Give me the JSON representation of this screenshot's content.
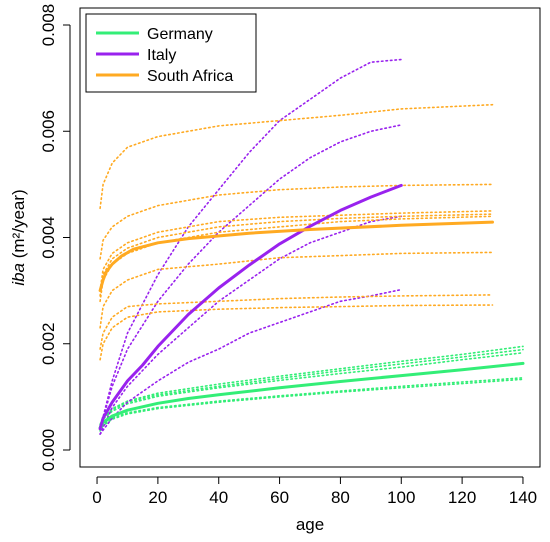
{
  "chart_data": {
    "type": "line",
    "xlabel": "age",
    "ylabel_italic": "iba",
    "ylabel_rest": " (m²/year)",
    "xlim": [
      0,
      140
    ],
    "ylim": [
      0.0,
      0.008
    ],
    "x_ticks": [
      0,
      20,
      40,
      60,
      80,
      100,
      120,
      140
    ],
    "y_ticks": [
      0.0,
      0.002,
      0.004,
      0.006,
      0.008
    ],
    "y_tick_labels": [
      "0.000",
      "0.002",
      "0.004",
      "0.006",
      "0.008"
    ],
    "grid": false,
    "legend_position": "top-left",
    "legend": [
      {
        "name": "Germany",
        "color": "#33ee77"
      },
      {
        "name": "Italy",
        "color": "#9922ee"
      },
      {
        "name": "South Africa",
        "color": "#ffaa22"
      }
    ],
    "series": [
      {
        "name": "Germany",
        "color": "#33ee77",
        "style": "solid",
        "x": [
          1,
          2,
          5,
          10,
          20,
          30,
          40,
          60,
          80,
          100,
          120,
          140
        ],
        "y": [
          0.00042,
          0.00052,
          0.00064,
          0.00075,
          0.00088,
          0.00097,
          0.00104,
          0.00117,
          0.00129,
          0.0014,
          0.00151,
          0.00163
        ]
      },
      {
        "color": "#33ee77",
        "style": "dotted",
        "x": [
          1,
          2,
          5,
          10,
          20,
          40,
          60,
          80,
          100,
          120,
          140
        ],
        "y": [
          0.00048,
          0.00062,
          0.00078,
          0.00092,
          0.00107,
          0.00124,
          0.00139,
          0.00153,
          0.00167,
          0.0018,
          0.00195
        ]
      },
      {
        "color": "#33ee77",
        "style": "dotted",
        "x": [
          1,
          2,
          5,
          10,
          20,
          40,
          60,
          80,
          100,
          120,
          140
        ],
        "y": [
          0.00046,
          0.0006,
          0.00076,
          0.0009,
          0.00104,
          0.0012,
          0.00135,
          0.00149,
          0.00162,
          0.00175,
          0.00189
        ]
      },
      {
        "color": "#33ee77",
        "style": "dotted",
        "x": [
          1,
          2,
          5,
          10,
          20,
          40,
          60,
          80,
          100,
          120,
          140
        ],
        "y": [
          0.00044,
          0.00058,
          0.00073,
          0.00087,
          0.00101,
          0.00117,
          0.00131,
          0.00144,
          0.00156,
          0.0017,
          0.00183
        ]
      },
      {
        "color": "#33ee77",
        "style": "dotted",
        "x": [
          1,
          2,
          5,
          10,
          20,
          40,
          60,
          80,
          100,
          120,
          140
        ],
        "y": [
          0.00038,
          0.00048,
          0.0006,
          0.0007,
          0.0008,
          0.00092,
          0.00102,
          0.00111,
          0.0012,
          0.00128,
          0.00136
        ]
      },
      {
        "color": "#33ee77",
        "style": "dotted",
        "x": [
          1,
          2,
          5,
          10,
          20,
          40,
          60,
          80,
          100,
          120,
          140
        ],
        "y": [
          0.00036,
          0.00046,
          0.00058,
          0.00068,
          0.00078,
          0.0009,
          0.001,
          0.00109,
          0.00117,
          0.00125,
          0.00133
        ]
      },
      {
        "name": "Italy",
        "color": "#9922ee",
        "style": "solid",
        "x": [
          1,
          2,
          5,
          10,
          15,
          20,
          30,
          40,
          50,
          60,
          70,
          80,
          90,
          100
        ],
        "y": [
          0.0004,
          0.0006,
          0.0009,
          0.0013,
          0.0016,
          0.00195,
          0.00255,
          0.00305,
          0.00348,
          0.00388,
          0.00421,
          0.00451,
          0.00476,
          0.00498
        ]
      },
      {
        "color": "#9922ee",
        "style": "dotted",
        "x": [
          1,
          5,
          10,
          20,
          30,
          40,
          50,
          60,
          70,
          80,
          90,
          100
        ],
        "y": [
          0.0004,
          0.0013,
          0.0022,
          0.0033,
          0.0042,
          0.0049,
          0.0056,
          0.0062,
          0.0066,
          0.007,
          0.0073,
          0.00735
        ]
      },
      {
        "color": "#9922ee",
        "style": "dotted",
        "x": [
          1,
          5,
          10,
          20,
          30,
          40,
          50,
          60,
          70,
          80,
          90,
          100
        ],
        "y": [
          0.0004,
          0.0012,
          0.0019,
          0.0028,
          0.0035,
          0.0041,
          0.0046,
          0.0051,
          0.0055,
          0.0058,
          0.006,
          0.00612
        ]
      },
      {
        "color": "#9922ee",
        "style": "dotted",
        "x": [
          1,
          5,
          10,
          20,
          30,
          40,
          50,
          60,
          70,
          80,
          90,
          100
        ],
        "y": [
          0.0003,
          0.0008,
          0.0012,
          0.0018,
          0.0023,
          0.0028,
          0.0032,
          0.0036,
          0.0039,
          0.0041,
          0.0043,
          0.0044
        ]
      },
      {
        "color": "#9922ee",
        "style": "dotted",
        "x": [
          1,
          5,
          10,
          20,
          30,
          40,
          50,
          60,
          70,
          80,
          90,
          100
        ],
        "y": [
          0.0003,
          0.0006,
          0.0009,
          0.0013,
          0.00165,
          0.0019,
          0.0022,
          0.0024,
          0.0026,
          0.0028,
          0.0029,
          0.00302
        ]
      },
      {
        "name": "South Africa",
        "color": "#ffaa22",
        "style": "solid",
        "x": [
          1,
          2,
          3,
          5,
          8,
          12,
          20,
          30,
          50,
          70,
          100,
          130
        ],
        "y": [
          0.003,
          0.0032,
          0.00335,
          0.0035,
          0.00365,
          0.00378,
          0.0039,
          0.00398,
          0.00408,
          0.00415,
          0.00423,
          0.00429
        ]
      },
      {
        "color": "#ffaa22",
        "style": "dotted",
        "x": [
          1,
          2,
          5,
          10,
          20,
          40,
          60,
          80,
          100,
          130
        ],
        "y": [
          0.00455,
          0.005,
          0.0054,
          0.0057,
          0.0059,
          0.0061,
          0.0062,
          0.0063,
          0.00642,
          0.0065
        ]
      },
      {
        "color": "#ffaa22",
        "style": "dotted",
        "x": [
          1,
          2,
          5,
          10,
          20,
          40,
          60,
          80,
          100,
          130
        ],
        "y": [
          0.0036,
          0.00395,
          0.0042,
          0.0044,
          0.0046,
          0.0048,
          0.0049,
          0.00495,
          0.00498,
          0.005
        ]
      },
      {
        "color": "#ffaa22",
        "style": "dotted",
        "x": [
          1,
          2,
          5,
          10,
          20,
          40,
          60,
          80,
          100,
          130
        ],
        "y": [
          0.003,
          0.0034,
          0.0037,
          0.0039,
          0.0041,
          0.0043,
          0.00438,
          0.00442,
          0.00446,
          0.0045
        ]
      },
      {
        "color": "#ffaa22",
        "style": "dotted",
        "x": [
          1,
          2,
          5,
          10,
          20,
          40,
          60,
          80,
          100,
          130
        ],
        "y": [
          0.0029,
          0.0033,
          0.0036,
          0.0038,
          0.004,
          0.0042,
          0.0043,
          0.00436,
          0.0044,
          0.00444
        ]
      },
      {
        "color": "#ffaa22",
        "style": "dotted",
        "x": [
          1,
          2,
          5,
          10,
          20,
          40,
          60,
          80,
          100,
          130
        ],
        "y": [
          0.0028,
          0.0032,
          0.0035,
          0.0037,
          0.0039,
          0.0041,
          0.0042,
          0.0043,
          0.00435,
          0.0044
        ]
      },
      {
        "color": "#ffaa22",
        "style": "dotted",
        "x": [
          1,
          2,
          5,
          10,
          20,
          40,
          60,
          80,
          100,
          130
        ],
        "y": [
          0.0023,
          0.0027,
          0.003,
          0.0032,
          0.0034,
          0.0035,
          0.00362,
          0.00366,
          0.0037,
          0.00372
        ]
      },
      {
        "color": "#ffaa22",
        "style": "dotted",
        "x": [
          1,
          2,
          5,
          10,
          20,
          40,
          60,
          80,
          100,
          130
        ],
        "y": [
          0.0019,
          0.0022,
          0.0025,
          0.0027,
          0.00275,
          0.0028,
          0.00285,
          0.00288,
          0.0029,
          0.00292
        ]
      },
      {
        "color": "#ffaa22",
        "style": "dotted",
        "x": [
          1,
          2,
          5,
          10,
          20,
          40,
          60,
          80,
          100,
          130
        ],
        "y": [
          0.0017,
          0.002,
          0.0023,
          0.0025,
          0.0026,
          0.00265,
          0.00268,
          0.0027,
          0.00272,
          0.00273
        ]
      }
    ]
  }
}
